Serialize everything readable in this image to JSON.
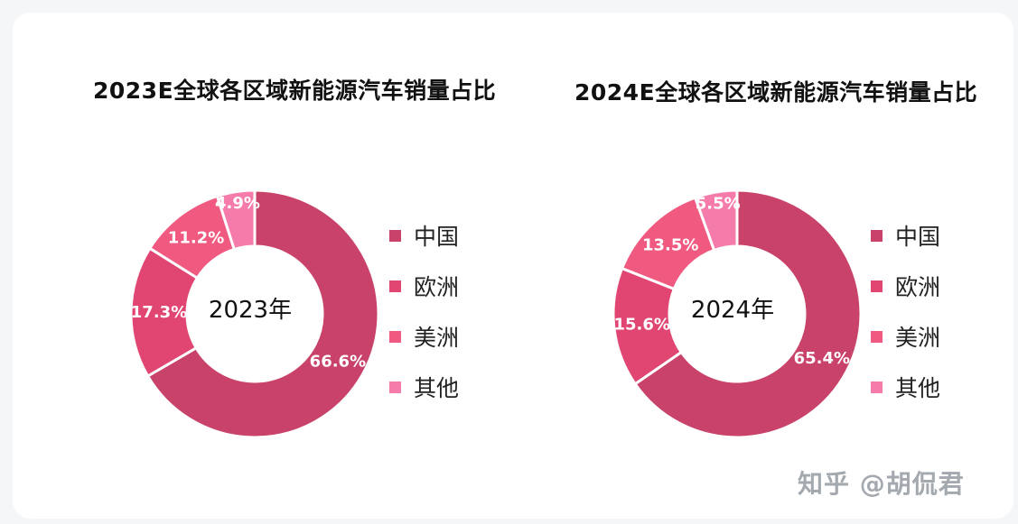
{
  "chart_data": [
    {
      "type": "pie",
      "title": "2023E全球各区域新能源汽车销量占比",
      "center_label": "2023年",
      "categories": [
        "中国",
        "欧洲",
        "美洲",
        "其他"
      ],
      "values": [
        66.6,
        17.3,
        11.2,
        4.9
      ],
      "data_labels": [
        "66.6%",
        "17.3%",
        "11.2%",
        "4.9%"
      ],
      "colors": [
        "#c8426a",
        "#e14672",
        "#f15a80",
        "#f57caa"
      ],
      "legend_position": "right"
    },
    {
      "type": "pie",
      "title": "2024E全球各区域新能源汽车销量占比",
      "center_label": "2024年",
      "categories": [
        "中国",
        "欧洲",
        "美洲",
        "其他"
      ],
      "values": [
        65.4,
        15.6,
        13.5,
        5.5
      ],
      "data_labels": [
        "65.4%",
        "15.6%",
        "13.5%",
        "5.5%"
      ],
      "colors": [
        "#c8426a",
        "#e14672",
        "#f15a80",
        "#f57caa"
      ],
      "legend_position": "right"
    }
  ],
  "watermark": "知乎 @胡侃君"
}
